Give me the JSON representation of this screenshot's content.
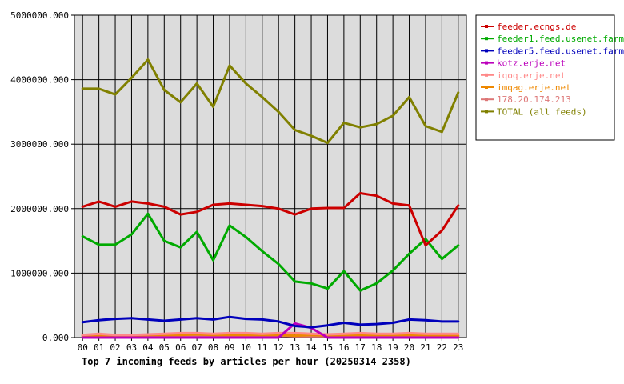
{
  "chart_data": {
    "type": "line",
    "title": "Top 7 incoming feeds by articles per hour (20250314 2358)",
    "xlabel": "",
    "ylabel": "",
    "categories": [
      "00",
      "01",
      "02",
      "03",
      "04",
      "05",
      "06",
      "07",
      "08",
      "09",
      "10",
      "11",
      "12",
      "13",
      "14",
      "15",
      "16",
      "17",
      "18",
      "19",
      "20",
      "21",
      "22",
      "23"
    ],
    "ylim": [
      0,
      5000000
    ],
    "yticks": [
      0,
      1000000,
      2000000,
      3000000,
      4000000,
      5000000
    ],
    "ytick_labels": [
      "0.000",
      "1000000.000",
      "2000000.000",
      "3000000.000",
      "4000000.000",
      "5000000.000"
    ],
    "grid": true,
    "legend_position": "right",
    "series": [
      {
        "name": "feeder.ecngs.de",
        "color": "#cc0000",
        "values": [
          2030000,
          2110000,
          2030000,
          2110000,
          2080000,
          2030000,
          1910000,
          1950000,
          2060000,
          2080000,
          2060000,
          2040000,
          2000000,
          1910000,
          2000000,
          2010000,
          2010000,
          2240000,
          2200000,
          2080000,
          2050000,
          1430000,
          1660000,
          2050000
        ]
      },
      {
        "name": "feeder1.feed.usenet.farm",
        "color": "#00aa00",
        "values": [
          1570000,
          1440000,
          1440000,
          1600000,
          1920000,
          1500000,
          1400000,
          1640000,
          1200000,
          1740000,
          1560000,
          1340000,
          1140000,
          870000,
          840000,
          760000,
          1030000,
          730000,
          840000,
          1040000,
          1300000,
          1530000,
          1220000,
          1430000
        ]
      },
      {
        "name": "feeder5.feed.usenet.farm",
        "color": "#0000bb",
        "values": [
          240000,
          270000,
          290000,
          300000,
          280000,
          260000,
          280000,
          300000,
          280000,
          320000,
          290000,
          280000,
          250000,
          180000,
          160000,
          190000,
          230000,
          200000,
          210000,
          230000,
          280000,
          270000,
          250000,
          250000
        ]
      },
      {
        "name": "kotz.erje.net",
        "color": "#bb00bb",
        "values": [
          0,
          0,
          0,
          0,
          0,
          0,
          0,
          0,
          0,
          0,
          0,
          0,
          0,
          220000,
          150000,
          0,
          0,
          0,
          0,
          0,
          0,
          0,
          0,
          0
        ]
      },
      {
        "name": "iqoq.erje.net",
        "color": "#ff8888",
        "values": [
          40000,
          60000,
          40000,
          40000,
          50000,
          60000,
          70000,
          70000,
          60000,
          70000,
          70000,
          60000,
          70000,
          70000,
          60000,
          50000,
          60000,
          70000,
          60000,
          60000,
          70000,
          60000,
          60000,
          60000
        ]
      },
      {
        "name": "imqag.erje.net",
        "color": "#ee8800",
        "values": [
          30000,
          30000,
          30000,
          30000,
          40000,
          40000,
          40000,
          50000,
          40000,
          40000,
          40000,
          40000,
          40000,
          30000,
          40000,
          30000,
          40000,
          40000,
          40000,
          40000,
          40000,
          40000,
          30000,
          30000
        ]
      },
      {
        "name": "178.20.174.213",
        "color": "#dd7777",
        "values": [
          20000,
          20000,
          20000,
          20000,
          20000,
          20000,
          30000,
          30000,
          20000,
          30000,
          30000,
          30000,
          30000,
          20000,
          20000,
          20000,
          30000,
          30000,
          30000,
          30000,
          30000,
          30000,
          20000,
          20000
        ]
      },
      {
        "name": "TOTAL (all feeds)",
        "color": "#808000",
        "values": [
          3860000,
          3860000,
          3770000,
          4030000,
          4310000,
          3840000,
          3650000,
          3940000,
          3580000,
          4220000,
          3940000,
          3730000,
          3500000,
          3220000,
          3130000,
          3020000,
          3330000,
          3260000,
          3310000,
          3440000,
          3730000,
          3280000,
          3190000,
          3800000
        ]
      }
    ]
  }
}
